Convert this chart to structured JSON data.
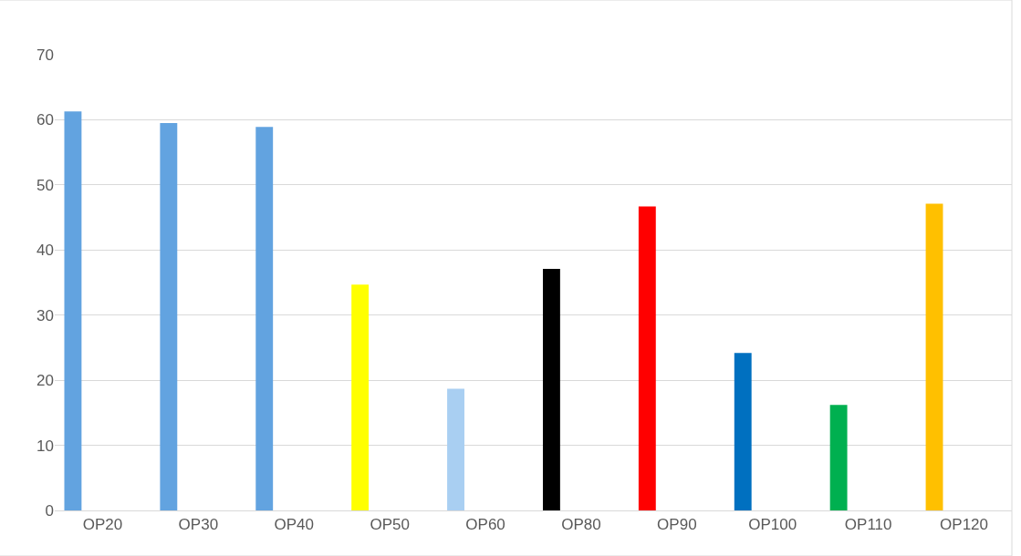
{
  "chart_data": {
    "type": "bar",
    "categories": [
      "OP20",
      "OP30",
      "OP40",
      "OP50",
      "OP60",
      "OP80",
      "OP90",
      "OP100",
      "OP110",
      "OP120"
    ],
    "values": [
      61.3,
      59.5,
      58.9,
      34.7,
      18.7,
      37.1,
      46.7,
      24.2,
      16.2,
      47.1
    ],
    "colors": [
      "#62a3e0",
      "#62a3e0",
      "#62a3e0",
      "#ffff00",
      "#a9cff2",
      "#000000",
      "#ff0000",
      "#0070c0",
      "#00b050",
      "#ffc000"
    ],
    "ylim": [
      0,
      70
    ],
    "yticks": [
      0,
      10,
      20,
      30,
      40,
      50,
      60,
      70
    ],
    "grid": "y"
  }
}
